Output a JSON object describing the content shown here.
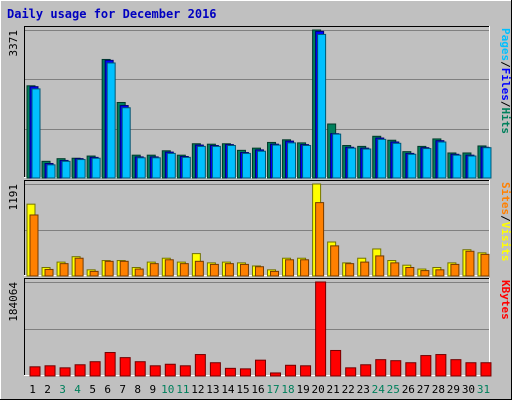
{
  "chart_data": {
    "type": "bar",
    "title": "Daily usage for December 2016",
    "days": [
      "1",
      "2",
      "3",
      "4",
      "5",
      "6",
      "7",
      "8",
      "9",
      "10",
      "11",
      "12",
      "13",
      "14",
      "15",
      "16",
      "17",
      "18",
      "19",
      "20",
      "21",
      "22",
      "23",
      "24",
      "25",
      "26",
      "27",
      "28",
      "29",
      "30",
      "31"
    ],
    "weekend_days": [
      "3",
      "4",
      "10",
      "11",
      "17",
      "18",
      "24",
      "25",
      "31"
    ],
    "panels": [
      {
        "id": "requests",
        "ymax_label": "3371",
        "ymax": 3371,
        "series": [
          {
            "name": "Hits",
            "color": "#00805c",
            "values": [
              2100,
              380,
              440,
              450,
              500,
              2700,
              1720,
              520,
              520,
              620,
              520,
              780,
              770,
              780,
              630,
              680,
              810,
              870,
              800,
              3371,
              1230,
              740,
              720,
              950,
              860,
              600,
              720,
              890,
              570,
              570,
              730
            ]
          },
          {
            "name": "Files",
            "color": "#0000ff",
            "values": [
              2080,
              330,
              400,
              440,
              470,
              2680,
              1650,
              480,
              480,
              590,
              490,
              750,
              740,
              760,
              580,
              640,
              770,
              840,
              760,
              3340,
              1010,
              700,
              680,
              910,
              820,
              560,
              690,
              850,
              540,
              520,
              700
            ]
          },
          {
            "name": "Pages",
            "color": "#00c0ff",
            "values": [
              2030,
              300,
              380,
              420,
              450,
              2620,
              1600,
              460,
              460,
              560,
              470,
              720,
              720,
              740,
              560,
              610,
              750,
              800,
              740,
              3270,
              1000,
              680,
              660,
              880,
              790,
              540,
              670,
              820,
              520,
              500,
              690
            ]
          }
        ]
      },
      {
        "id": "visits",
        "ymax_label": "1191",
        "ymax": 1191,
        "series": [
          {
            "name": "Visits",
            "color": "#ffff00",
            "values": [
              930,
              110,
              180,
              250,
              80,
              200,
              200,
              110,
              180,
              230,
              180,
              290,
              170,
              180,
              170,
              130,
              80,
              230,
              230,
              1191,
              440,
              170,
              230,
              350,
              200,
              140,
              90,
              110,
              170,
              340,
              300
            ]
          },
          {
            "name": "Sites",
            "color": "#ff8000",
            "values": [
              790,
              85,
              160,
              230,
              60,
              190,
              190,
              90,
              160,
              210,
              160,
              190,
              150,
              160,
              150,
              120,
              60,
              210,
              210,
              950,
              390,
              160,
              180,
              260,
              170,
              110,
              70,
              80,
              150,
              320,
              280
            ]
          }
        ]
      },
      {
        "id": "kbytes",
        "ymax_label": "184064",
        "ymax": 184064,
        "series": [
          {
            "name": "KBytes",
            "color": "#ff0000",
            "values": [
              18000,
              20000,
              16000,
              22000,
              28000,
              46000,
              36000,
              28000,
              20000,
              23000,
              20000,
              42000,
              26000,
              15000,
              14000,
              31000,
              6000,
              21000,
              20000,
              184064,
              50000,
              16000,
              22000,
              32000,
              30000,
              26000,
              40000,
              42000,
              32000,
              26000,
              26000
            ]
          }
        ]
      }
    ],
    "right_labels": [
      {
        "panel": "requests",
        "parts": [
          [
            "Pages",
            "#00c0ff"
          ],
          [
            "/",
            "#000000"
          ],
          [
            "Files",
            "#0000ff"
          ],
          [
            "/",
            "#000000"
          ],
          [
            "Hits",
            "#00805c"
          ]
        ]
      },
      {
        "panel": "visits",
        "parts": [
          [
            "Sites",
            "#ff8000"
          ],
          [
            "/",
            "#000000"
          ],
          [
            "Visits",
            "#ffff00"
          ]
        ]
      },
      {
        "panel": "kbytes",
        "parts": [
          [
            "KBytes",
            "#ff0000"
          ]
        ]
      }
    ]
  }
}
